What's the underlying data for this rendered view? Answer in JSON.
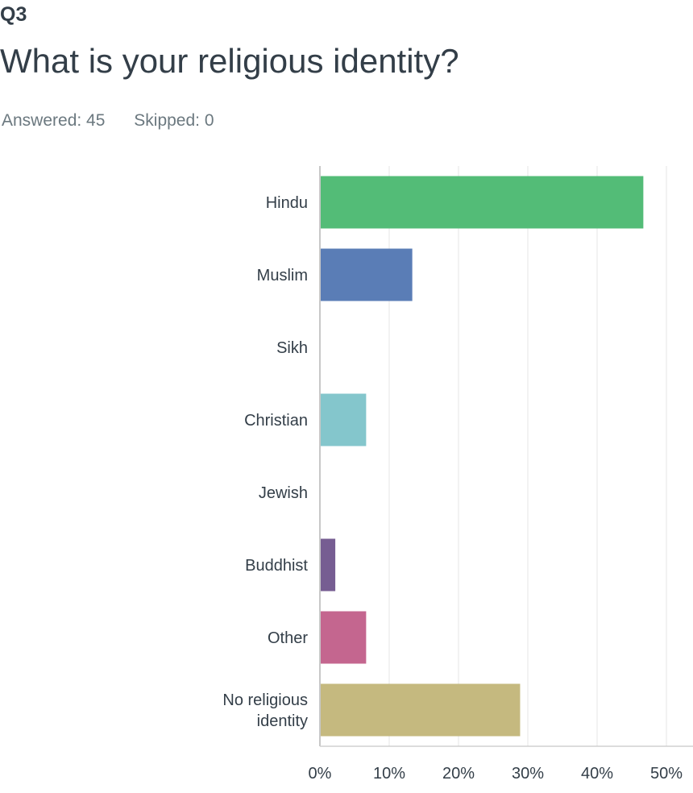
{
  "question": {
    "number": "Q3",
    "title": "What is your religious identity?",
    "answered": "Answered: 45",
    "skipped": "Skipped: 0"
  },
  "chart_data": {
    "type": "bar",
    "orientation": "horizontal",
    "categories": [
      "Hindu",
      "Muslim",
      "Sikh",
      "Christian",
      "Jewish",
      "Buddhist",
      "Other",
      "No religious identity"
    ],
    "category_lines": [
      [
        "Hindu"
      ],
      [
        "Muslim"
      ],
      [
        "Sikh"
      ],
      [
        "Christian"
      ],
      [
        "Jewish"
      ],
      [
        "Buddhist"
      ],
      [
        "Other"
      ],
      [
        "No religious",
        "identity"
      ]
    ],
    "values": [
      46.67,
      13.33,
      0,
      6.67,
      0,
      2.22,
      6.67,
      28.89
    ],
    "colors": [
      "#53bc77",
      "#5a7db6",
      "#f0a65f",
      "#84c6cc",
      "#e0744f",
      "#765d92",
      "#c4668f",
      "#c5b97f"
    ],
    "xlim": [
      0,
      50
    ],
    "ticks": [
      0,
      10,
      20,
      30,
      40,
      50
    ],
    "tick_labels": [
      "0%",
      "10%",
      "20%",
      "30%",
      "40%",
      "50%"
    ],
    "grid": true
  }
}
